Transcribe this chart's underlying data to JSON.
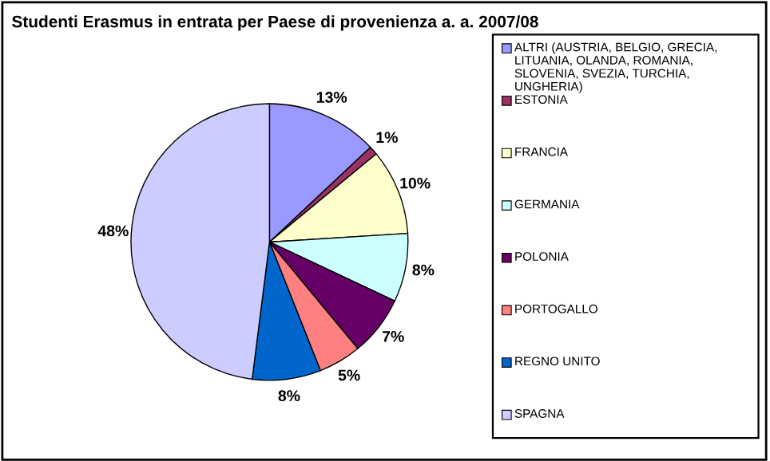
{
  "chart_data": {
    "type": "pie",
    "title": "Studenti Erasmus in entrata per Paese di provenienza a. a. 2007/08",
    "categories": [
      "ALTRI (AUSTRIA, BELGIO, GRECIA, LITUANIA, OLANDA, ROMANIA, SLOVENIA, SVEZIA, TURCHIA, UNGHERIA)",
      "ESTONIA",
      "FRANCIA",
      "GERMANIA",
      "POLONIA",
      "PORTOGALLO",
      "REGNO UNITO",
      "SPAGNA"
    ],
    "values": [
      13,
      1,
      10,
      8,
      7,
      5,
      8,
      48
    ],
    "value_labels": [
      "13%",
      "1%",
      "10%",
      "8%",
      "7%",
      "5%",
      "8%",
      "48%"
    ],
    "colors": [
      "#9999ff",
      "#993366",
      "#ffffcc",
      "#ccffff",
      "#660066",
      "#ff8080",
      "#0066cc",
      "#ccccff"
    ],
    "legend": "right"
  }
}
